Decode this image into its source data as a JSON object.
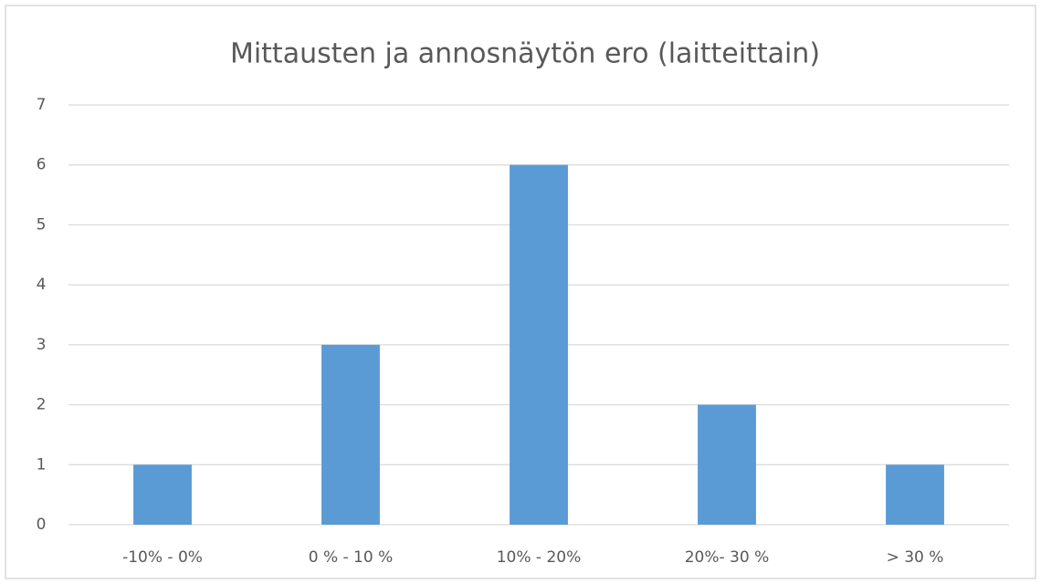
{
  "chart_data": {
    "type": "bar",
    "title": "Mittausten ja annosnäytön ero (laitteittain)",
    "categories": [
      "-10% - 0%",
      "0 % - 10 %",
      "10% - 20%",
      "20%- 30 %",
      "> 30 %"
    ],
    "values": [
      1,
      3,
      6,
      2,
      1
    ],
    "color": "#5b9bd5",
    "ylim": [
      0,
      7
    ],
    "yticks": [
      0,
      1,
      2,
      3,
      4,
      5,
      6,
      7
    ],
    "grid": true
  }
}
